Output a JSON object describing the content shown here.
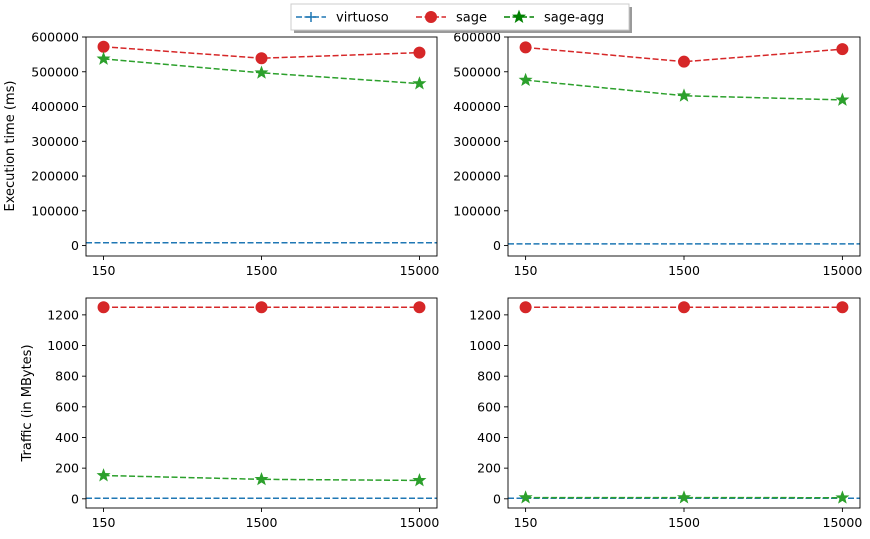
{
  "legend": {
    "placement": "top-center",
    "entries": [
      {
        "key": "virtuoso",
        "label": "virtuoso",
        "color": "#1f77b4",
        "marker": "plus"
      },
      {
        "key": "sage",
        "label": "sage",
        "color": "#d62728",
        "marker": "circle"
      },
      {
        "key": "sage_agg",
        "label": "sage-agg",
        "color": "#2ca02c",
        "legend_color": "#008000",
        "marker": "star"
      }
    ]
  },
  "chart_data": [
    {
      "type": "line",
      "panel": "top-left",
      "xlabel": "",
      "ylabel": "Execution time (ms)",
      "categories": [
        "150",
        "1500",
        "15000"
      ],
      "ylim": [
        -30000,
        600000
      ],
      "yticks": [
        0,
        100000,
        200000,
        300000,
        400000,
        500000,
        600000
      ],
      "grid": false,
      "series": [
        {
          "name": "virtuoso",
          "values": [
            8000,
            8000,
            8000
          ]
        },
        {
          "name": "sage",
          "values": [
            572000,
            539000,
            555000
          ]
        },
        {
          "name": "sage-agg",
          "values": [
            537000,
            497000,
            466000
          ]
        }
      ]
    },
    {
      "type": "line",
      "panel": "top-right",
      "xlabel": "",
      "ylabel": "",
      "categories": [
        "150",
        "1500",
        "15000"
      ],
      "ylim": [
        -30000,
        600000
      ],
      "yticks": [
        0,
        100000,
        200000,
        300000,
        400000,
        500000,
        600000
      ],
      "grid": false,
      "series": [
        {
          "name": "virtuoso",
          "values": [
            5000,
            5000,
            5000
          ]
        },
        {
          "name": "sage",
          "values": [
            570000,
            529000,
            565000
          ]
        },
        {
          "name": "sage-agg",
          "values": [
            476000,
            431000,
            419000
          ]
        }
      ]
    },
    {
      "type": "line",
      "panel": "bottom-left",
      "xlabel": "",
      "ylabel": "Traffic (in MBytes)",
      "categories": [
        "150",
        "1500",
        "15000"
      ],
      "ylim": [
        -60,
        1310
      ],
      "yticks": [
        0,
        200,
        400,
        600,
        800,
        1000,
        1200
      ],
      "grid": false,
      "series": [
        {
          "name": "virtuoso",
          "values": [
            4,
            4,
            4
          ]
        },
        {
          "name": "sage",
          "values": [
            1250,
            1250,
            1250
          ]
        },
        {
          "name": "sage-agg",
          "values": [
            152,
            127,
            120
          ]
        }
      ]
    },
    {
      "type": "line",
      "panel": "bottom-right",
      "xlabel": "",
      "ylabel": "",
      "categories": [
        "150",
        "1500",
        "15000"
      ],
      "ylim": [
        -60,
        1310
      ],
      "yticks": [
        0,
        200,
        400,
        600,
        800,
        1000,
        1200
      ],
      "grid": false,
      "series": [
        {
          "name": "virtuoso",
          "values": [
            4,
            4,
            4
          ]
        },
        {
          "name": "sage",
          "values": [
            1250,
            1250,
            1250
          ]
        },
        {
          "name": "sage-agg",
          "values": [
            8,
            8,
            7
          ]
        }
      ]
    }
  ]
}
